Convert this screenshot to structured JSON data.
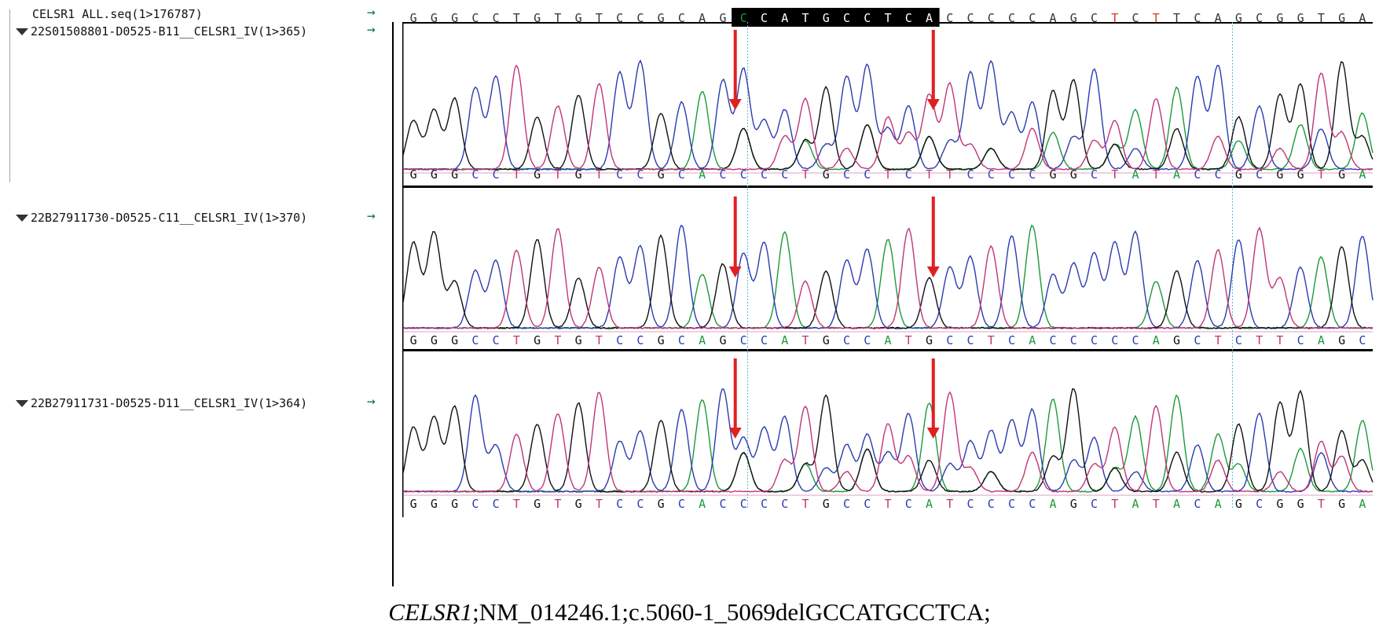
{
  "reference": {
    "label": "CELSR1 ALL.seq(1>176787)",
    "sequence": "GGGCCTGTGTCCGCAGCCATGCCTCACCCCCAGCTCTTCAGCGGTGA",
    "highlight_range": [
      16,
      25
    ]
  },
  "tracks": [
    {
      "label": "22S01508801-D0525-B11__CELSR1_IV(1>365)",
      "basecalls": "GGGCCTGTGTCCGCACCCCTGCCTCTTCCCCGGCTATACCGCGGTGA"
    },
    {
      "label": "22B27911730-D0525-C11__CELSR1_IV(1>370)",
      "basecalls": "GGGCCTGTGTCCGCAGCCATGCCATGCCTCACCCCCAGCTCTTCAGCGGTGA"
    },
    {
      "label": "22B27911731-D0525-D11__CELSR1_IV(1>364)",
      "basecalls": "GGGCCTGTGTCCGCACCCCTGCCTCATCCCCAGCTATACAGCGGTGA"
    }
  ],
  "caption": {
    "gene": "CELSR1",
    "rest": ";NM_014246.1;c.5060-1_5069delGCCATGCCTCA;"
  },
  "colors": {
    "A": "#1a9a3a",
    "C": "#2b3bb0",
    "G": "#111111",
    "T": "#c0357a",
    "arrow": "#e02020",
    "guide": "#59b7d9"
  }
}
